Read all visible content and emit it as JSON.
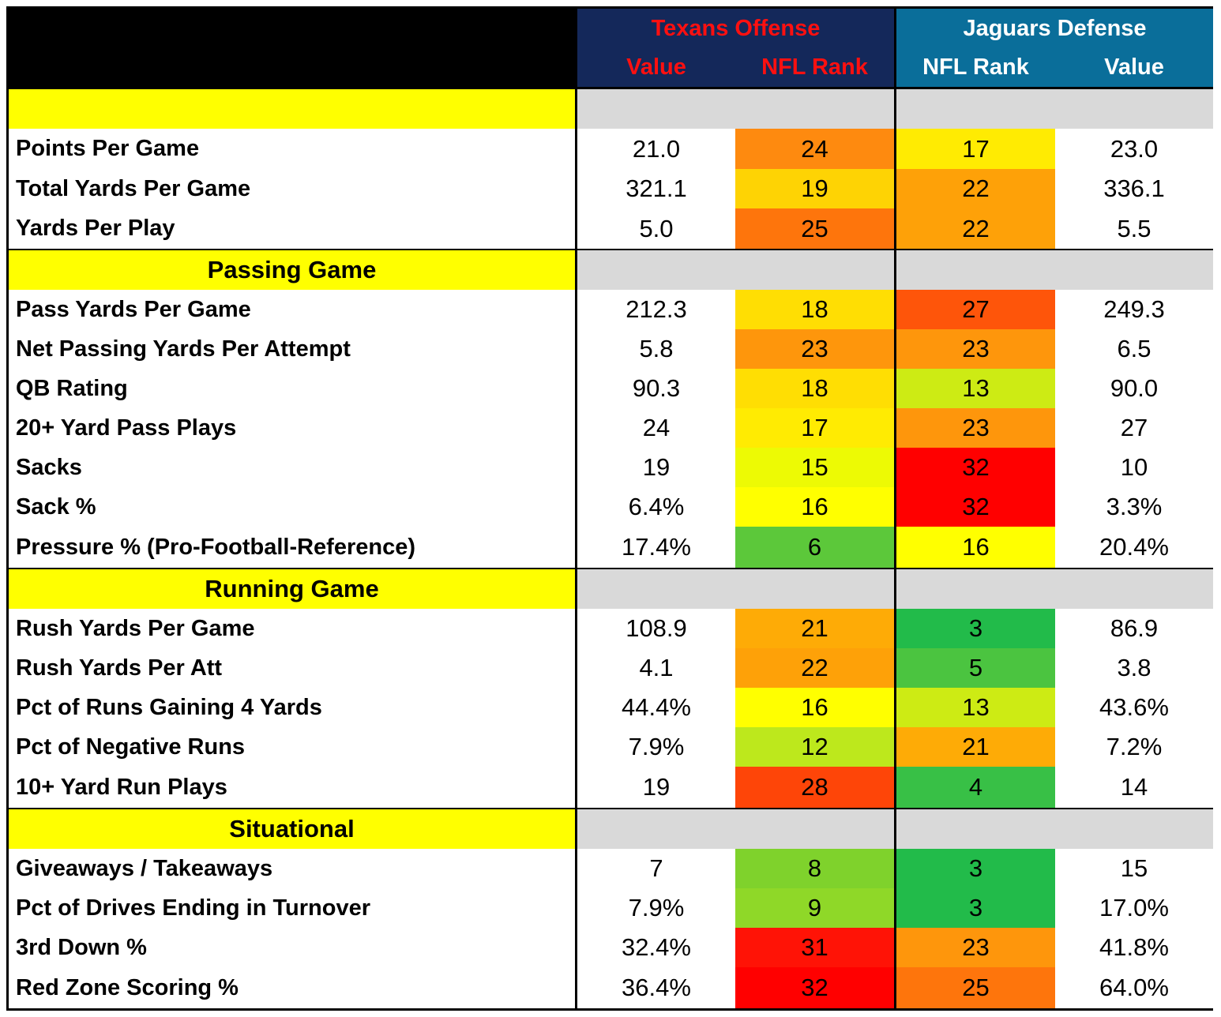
{
  "header": {
    "texans_title": "Texans Offense",
    "jaguars_title": "Jaguars Defense",
    "col_texans_value": "Value",
    "col_texans_rank": "NFL Rank",
    "col_jaguars_rank": "NFL Rank",
    "col_jaguars_value": "Value"
  },
  "colors": {
    "texans_bg": "#14285a",
    "texans_text": "#ff1010",
    "jaguars_bg": "#0a6e9a",
    "jaguars_text": "#ffffff",
    "section_label_bg": "#ffff00",
    "section_gray_bg": "#d9d9d9"
  },
  "sections": [
    {
      "title": "",
      "rows": [
        {
          "stat": "Points Per Game",
          "tv": "21.0",
          "tr": "24",
          "tr_color": "#fe8a0f",
          "jr": "17",
          "jr_color": "#ffeb02",
          "jv": "23.0"
        },
        {
          "stat": "Total Yards Per Game",
          "tv": "321.1",
          "tr": "19",
          "tr_color": "#fed304",
          "jr": "22",
          "jr_color": "#fea108",
          "jv": "336.1"
        },
        {
          "stat": "Yards Per Play",
          "tv": "5.0",
          "tr": "25",
          "tr_color": "#fe750c",
          "jr": "22",
          "jr_color": "#fea108",
          "jv": "5.5"
        }
      ]
    },
    {
      "title": "Passing Game",
      "rows": [
        {
          "stat": "Pass Yards Per Game",
          "tv": "212.3",
          "tr": "18",
          "tr_color": "#ffde03",
          "jr": "27",
          "jr_color": "#fe550a",
          "jv": "249.3"
        },
        {
          "stat": "Net Passing Yards Per Attempt",
          "tv": "5.8",
          "tr": "23",
          "tr_color": "#fe960c",
          "jr": "23",
          "jr_color": "#fe960c",
          "jv": "6.5"
        },
        {
          "stat": "QB Rating",
          "tv": "90.3",
          "tr": "18",
          "tr_color": "#ffde03",
          "jr": "13",
          "jr_color": "#cdeb14",
          "jv": "90.0"
        },
        {
          "stat": "20+ Yard Pass Plays",
          "tv": "24",
          "tr": "17",
          "tr_color": "#ffeb02",
          "jr": "23",
          "jr_color": "#fe960c",
          "jv": "27"
        },
        {
          "stat": "Sacks",
          "tv": "19",
          "tr": "15",
          "tr_color": "#edfa04",
          "jr": "32",
          "jr_color": "#ff0000",
          "jv": "10"
        },
        {
          "stat": "Sack %",
          "tv": "6.4%",
          "tr": "16",
          "tr_color": "#ffff00",
          "jr": "32",
          "jr_color": "#ff0000",
          "jv": "3.3%"
        },
        {
          "stat": "Pressure % (Pro-Football-Reference)",
          "tv": "17.4%",
          "tr": "6",
          "tr_color": "#5cc83a",
          "jr": "16",
          "jr_color": "#ffff00",
          "jv": "20.4%"
        }
      ]
    },
    {
      "title": "Running Game",
      "rows": [
        {
          "stat": "Rush Yards Per Game",
          "tv": "108.9",
          "tr": "21",
          "tr_color": "#feab06",
          "jr": "3",
          "jr_color": "#22bb4a",
          "jv": "86.9"
        },
        {
          "stat": "Rush Yards Per Att",
          "tv": "4.1",
          "tr": "22",
          "tr_color": "#fea108",
          "jr": "5",
          "jr_color": "#4bc440",
          "jv": "3.8"
        },
        {
          "stat": "Pct of Runs Gaining 4 Yards",
          "tv": "44.4%",
          "tr": "16",
          "tr_color": "#ffff00",
          "jr": "13",
          "jr_color": "#cdeb14",
          "jv": "43.6%"
        },
        {
          "stat": "Pct of Negative Runs",
          "tv": "7.9%",
          "tr": "12",
          "tr_color": "#bde81c",
          "jr": "21",
          "jr_color": "#feab06",
          "jv": "7.2%"
        },
        {
          "stat": "10+ Yard Run Plays",
          "tv": "19",
          "tr": "28",
          "tr_color": "#fe4508",
          "jr": "4",
          "jr_color": "#38c046",
          "jv": "14"
        }
      ]
    },
    {
      "title": "Situational",
      "rows": [
        {
          "stat": "Giveaways / Takeaways",
          "tv": "7",
          "tr": "8",
          "tr_color": "#7fd22c",
          "jr": "3",
          "jr_color": "#22bb4a",
          "jv": "15"
        },
        {
          "stat": "Pct of Drives Ending in Turnover",
          "tv": "7.9%",
          "tr": "9",
          "tr_color": "#8fd828",
          "jr": "3",
          "jr_color": "#22bb4a",
          "jv": "17.0%"
        },
        {
          "stat": "3rd Down %",
          "tv": "32.4%",
          "tr": "31",
          "tr_color": "#ff1306",
          "jr": "23",
          "jr_color": "#fe960c",
          "jv": "41.8%"
        },
        {
          "stat": "Red Zone Scoring %",
          "tv": "36.4%",
          "tr": "32",
          "tr_color": "#ff0000",
          "jr": "25",
          "jr_color": "#fe750c",
          "jv": "64.0%"
        }
      ]
    }
  ]
}
